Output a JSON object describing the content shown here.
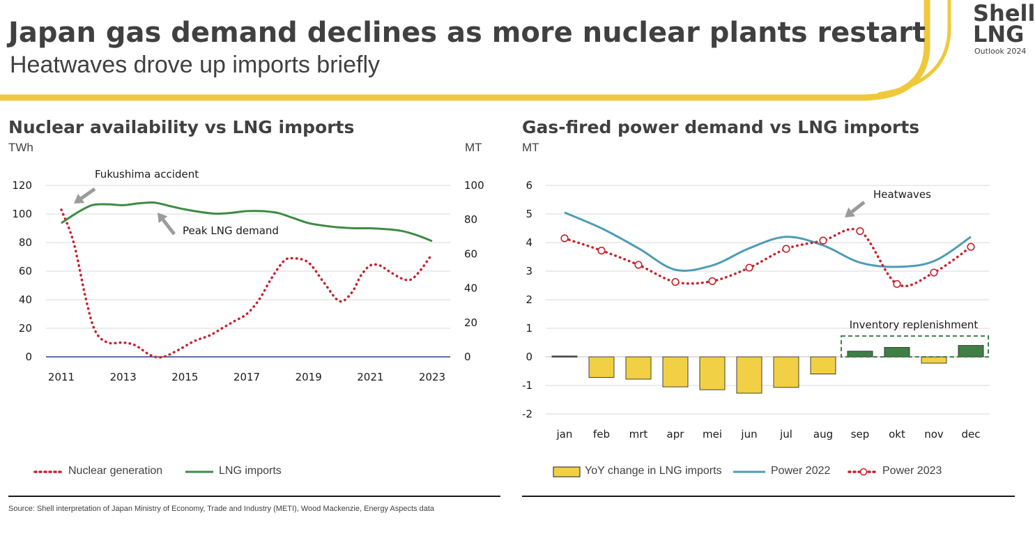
{
  "header": {
    "title": "Japan gas demand declines as more nuclear plants restart",
    "subtitle": "Heatwaves drove up imports briefly",
    "brand_line1": "Shell",
    "brand_line2": "LNG",
    "brand_line3": "Outlook 2024"
  },
  "colors": {
    "accent_yellow": "#EFC93B",
    "nuclear_red": "#C8202B",
    "lng_green": "#3E8A44",
    "power2022_blue": "#4E9CB5",
    "bar_yellow": "#F1D045",
    "bar_green": "#3F7F46",
    "text": "#404040"
  },
  "source": "Source: Shell interpretation of Japan Ministry of Economy, Trade and Industry (METI), Wood Mackenzie, Energy Aspects data",
  "chart_data": [
    {
      "type": "line",
      "title": "Nuclear availability vs LNG imports",
      "ylabel_left": "TWh",
      "ylabel_right": "MT",
      "ylim_left": [
        0,
        120
      ],
      "ylim_right": [
        0,
        100
      ],
      "yticks_left": [
        "120",
        "100",
        "80",
        "60",
        "40",
        "20",
        "0"
      ],
      "yticks_right": [
        "100",
        "80",
        "60",
        "40",
        "20",
        "0"
      ],
      "xticks": [
        "2011",
        "2013",
        "2015",
        "2017",
        "2019",
        "2021",
        "2023"
      ],
      "grid": true,
      "series": [
        {
          "name": "Nuclear generation",
          "axis": "left",
          "style": "dotted",
          "x": [
            2011,
            2011.4,
            2011.8,
            2012.1,
            2012.5,
            2013.0,
            2013.4,
            2013.9,
            2014.3,
            2014.8,
            2015.3,
            2015.8,
            2016.2,
            2016.6,
            2017.0,
            2017.4,
            2017.8,
            2018.2,
            2018.5,
            2019.0,
            2019.5,
            2020.0,
            2020.4,
            2020.7,
            2021.0,
            2021.3,
            2021.6,
            2022.0,
            2022.3,
            2022.6,
            2023.0
          ],
          "y": [
            103,
            80,
            40,
            18,
            10,
            10,
            8,
            1,
            0,
            5,
            11,
            15,
            20,
            25,
            30,
            40,
            55,
            67,
            69,
            66,
            52,
            39,
            45,
            57,
            64,
            64,
            60,
            55,
            54,
            60,
            72
          ]
        },
        {
          "name": "LNG imports",
          "axis": "right",
          "style": "solid",
          "x": [
            2011,
            2011.5,
            2012.0,
            2012.5,
            2013.0,
            2013.5,
            2014.0,
            2014.5,
            2015.0,
            2015.5,
            2016.0,
            2016.5,
            2017.0,
            2017.5,
            2018.0,
            2018.5,
            2019.0,
            2019.5,
            2020.0,
            2020.5,
            2021.0,
            2021.5,
            2022.0,
            2022.5,
            2023.0
          ],
          "y": [
            78,
            84,
            88.5,
            89,
            88.5,
            89.5,
            90,
            88,
            86,
            84.5,
            83.5,
            84,
            85,
            85,
            84,
            81,
            78,
            76.5,
            75.5,
            75,
            75,
            74.5,
            73.5,
            71,
            67.5
          ]
        }
      ],
      "annotations": [
        "Fukushima accident",
        "Peak LNG demand"
      ],
      "legend": "bottom"
    },
    {
      "type": "bar",
      "title": "Gas-fired power demand vs LNG imports",
      "ylabel": "MT",
      "ylim": [
        -2,
        6
      ],
      "yticks": [
        "6",
        "5",
        "4",
        "3",
        "2",
        "1",
        "0",
        "-1",
        "-2"
      ],
      "categories": [
        "jan",
        "feb",
        "mrt",
        "apr",
        "mei",
        "jun",
        "jul",
        "aug",
        "sep",
        "okt",
        "nov",
        "dec"
      ],
      "grid": true,
      "series": [
        {
          "name": "YoY change in LNG imports",
          "type": "bar",
          "values": [
            0.03,
            -0.72,
            -0.78,
            -1.05,
            -1.15,
            -1.27,
            -1.07,
            -0.6,
            0.2,
            0.33,
            -0.22,
            0.4
          ]
        },
        {
          "name": "Power 2022",
          "type": "line",
          "values": [
            5.05,
            4.5,
            3.8,
            3.05,
            3.2,
            3.8,
            4.2,
            3.9,
            3.3,
            3.15,
            3.35,
            4.2
          ]
        },
        {
          "name": "Power 2023",
          "type": "line",
          "style": "dotted-markers",
          "values": [
            4.15,
            3.72,
            3.22,
            2.62,
            2.65,
            3.12,
            3.78,
            4.07,
            4.4,
            2.55,
            2.95,
            3.85
          ]
        }
      ],
      "annotations": [
        "Heatwaves",
        "Inventory replenishment"
      ],
      "legend": "bottom"
    }
  ]
}
